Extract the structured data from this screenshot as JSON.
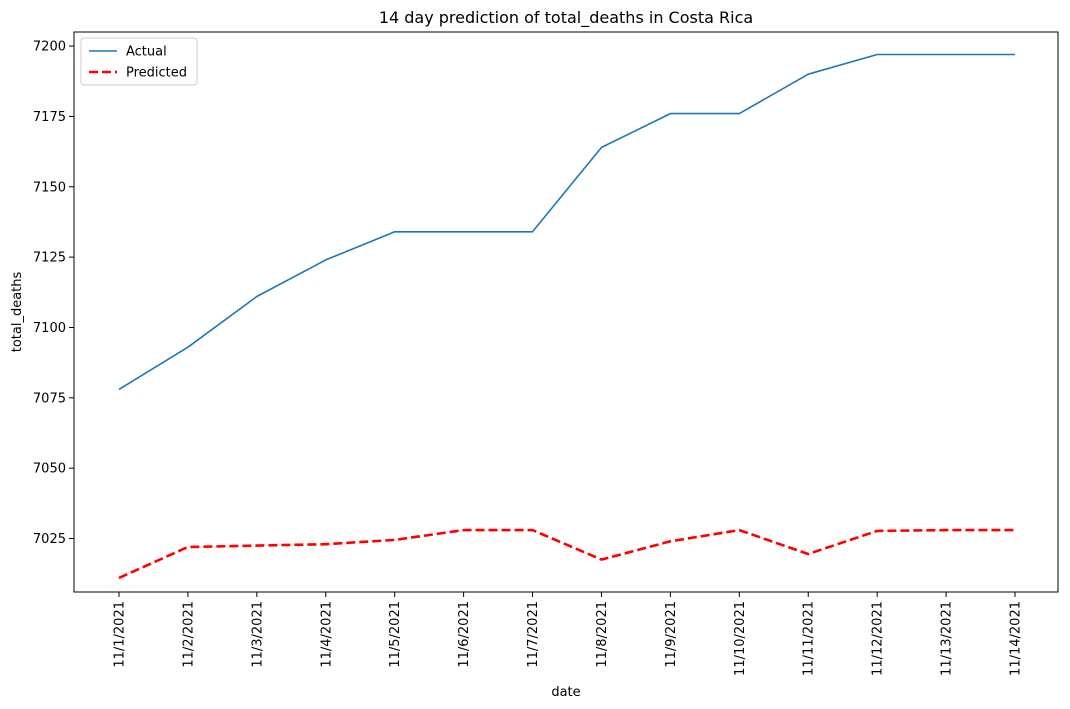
{
  "chart_data": {
    "type": "line",
    "title": "14 day prediction of total_deaths in Costa Rica",
    "xlabel": "date",
    "ylabel": "total_deaths",
    "categories": [
      "11/1/2021",
      "11/2/2021",
      "11/3/2021",
      "11/4/2021",
      "11/5/2021",
      "11/6/2021",
      "11/7/2021",
      "11/8/2021",
      "11/9/2021",
      "11/10/2021",
      "11/11/2021",
      "11/12/2021",
      "11/13/2021",
      "11/14/2021"
    ],
    "ylim": [
      7006,
      7205
    ],
    "yticks": [
      7025,
      7050,
      7075,
      7100,
      7125,
      7150,
      7175,
      7200
    ],
    "grid": false,
    "legend_position": "upper-left",
    "series": [
      {
        "name": "Actual",
        "color": "#1f77b4",
        "style": "solid",
        "values": [
          7078,
          7093,
          7111,
          7124,
          7134,
          7134,
          7134,
          7164,
          7176,
          7176,
          7190,
          7197,
          7197,
          7197
        ]
      },
      {
        "name": "Predicted",
        "color": "#ff0000",
        "style": "dashed",
        "values": [
          7011,
          7022,
          7022.5,
          7023,
          7024.5,
          7028,
          7028,
          7017.5,
          7024,
          7028,
          7019.5,
          7027.7,
          7028,
          7028
        ]
      }
    ]
  }
}
